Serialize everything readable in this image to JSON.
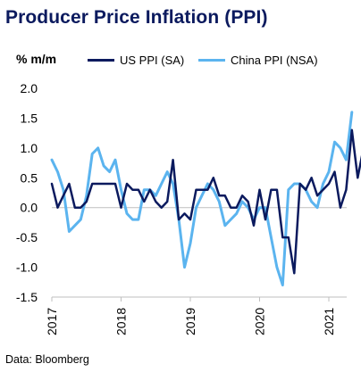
{
  "title": "Producer Price Inflation (PPI)",
  "source": "Data: Bloomberg",
  "chart_data": {
    "type": "line",
    "unit_label": "% m/m",
    "ylim": [
      -1.5,
      2.0
    ],
    "yticks": [
      "2.0",
      "1.5",
      "1.0",
      "0.5",
      "0.0",
      "-0.5",
      "-1.0",
      "-1.5"
    ],
    "ytick_values": [
      2.0,
      1.5,
      1.0,
      0.5,
      0.0,
      -0.5,
      -1.0,
      -1.5
    ],
    "xticks": [
      "2017",
      "2018",
      "2019",
      "2020",
      "2021"
    ],
    "x_start": "2017-01",
    "grid": false,
    "legend": "top",
    "series": [
      {
        "name": "US PPI (SA)",
        "color": "#0b1a5e",
        "values": [
          0.4,
          0.0,
          0.2,
          0.4,
          0.0,
          0.0,
          0.1,
          0.4,
          0.4,
          0.4,
          0.4,
          0.4,
          0.0,
          0.4,
          0.3,
          0.3,
          0.1,
          0.3,
          0.1,
          0.0,
          0.1,
          0.8,
          -0.2,
          -0.1,
          -0.2,
          0.3,
          0.3,
          0.3,
          0.5,
          0.2,
          0.2,
          0.0,
          0.0,
          0.2,
          0.1,
          -0.3,
          0.3,
          -0.2,
          0.3,
          0.3,
          -0.5,
          -0.5,
          -1.1,
          0.4,
          0.3,
          0.5,
          0.2,
          0.3,
          0.4,
          0.6,
          0.0,
          0.3,
          1.3,
          0.5,
          1.0
        ]
      },
      {
        "name": "China PPI (NSA)",
        "color": "#5bb4ef",
        "values": [
          0.8,
          0.6,
          0.3,
          -0.4,
          -0.3,
          -0.2,
          0.2,
          0.9,
          1.0,
          0.7,
          0.6,
          0.8,
          0.3,
          -0.1,
          -0.2,
          -0.2,
          0.3,
          0.3,
          0.2,
          0.4,
          0.6,
          0.4,
          -0.2,
          -1.0,
          -0.6,
          0.0,
          0.2,
          0.4,
          0.3,
          0.1,
          -0.3,
          -0.2,
          -0.1,
          0.1,
          0.0,
          -0.2,
          0.0,
          0.0,
          -0.5,
          -1.0,
          -1.3,
          0.3,
          0.4,
          0.4,
          0.3,
          0.1,
          0.0,
          0.4,
          0.6,
          1.1,
          1.0,
          0.8,
          1.6
        ]
      }
    ]
  }
}
